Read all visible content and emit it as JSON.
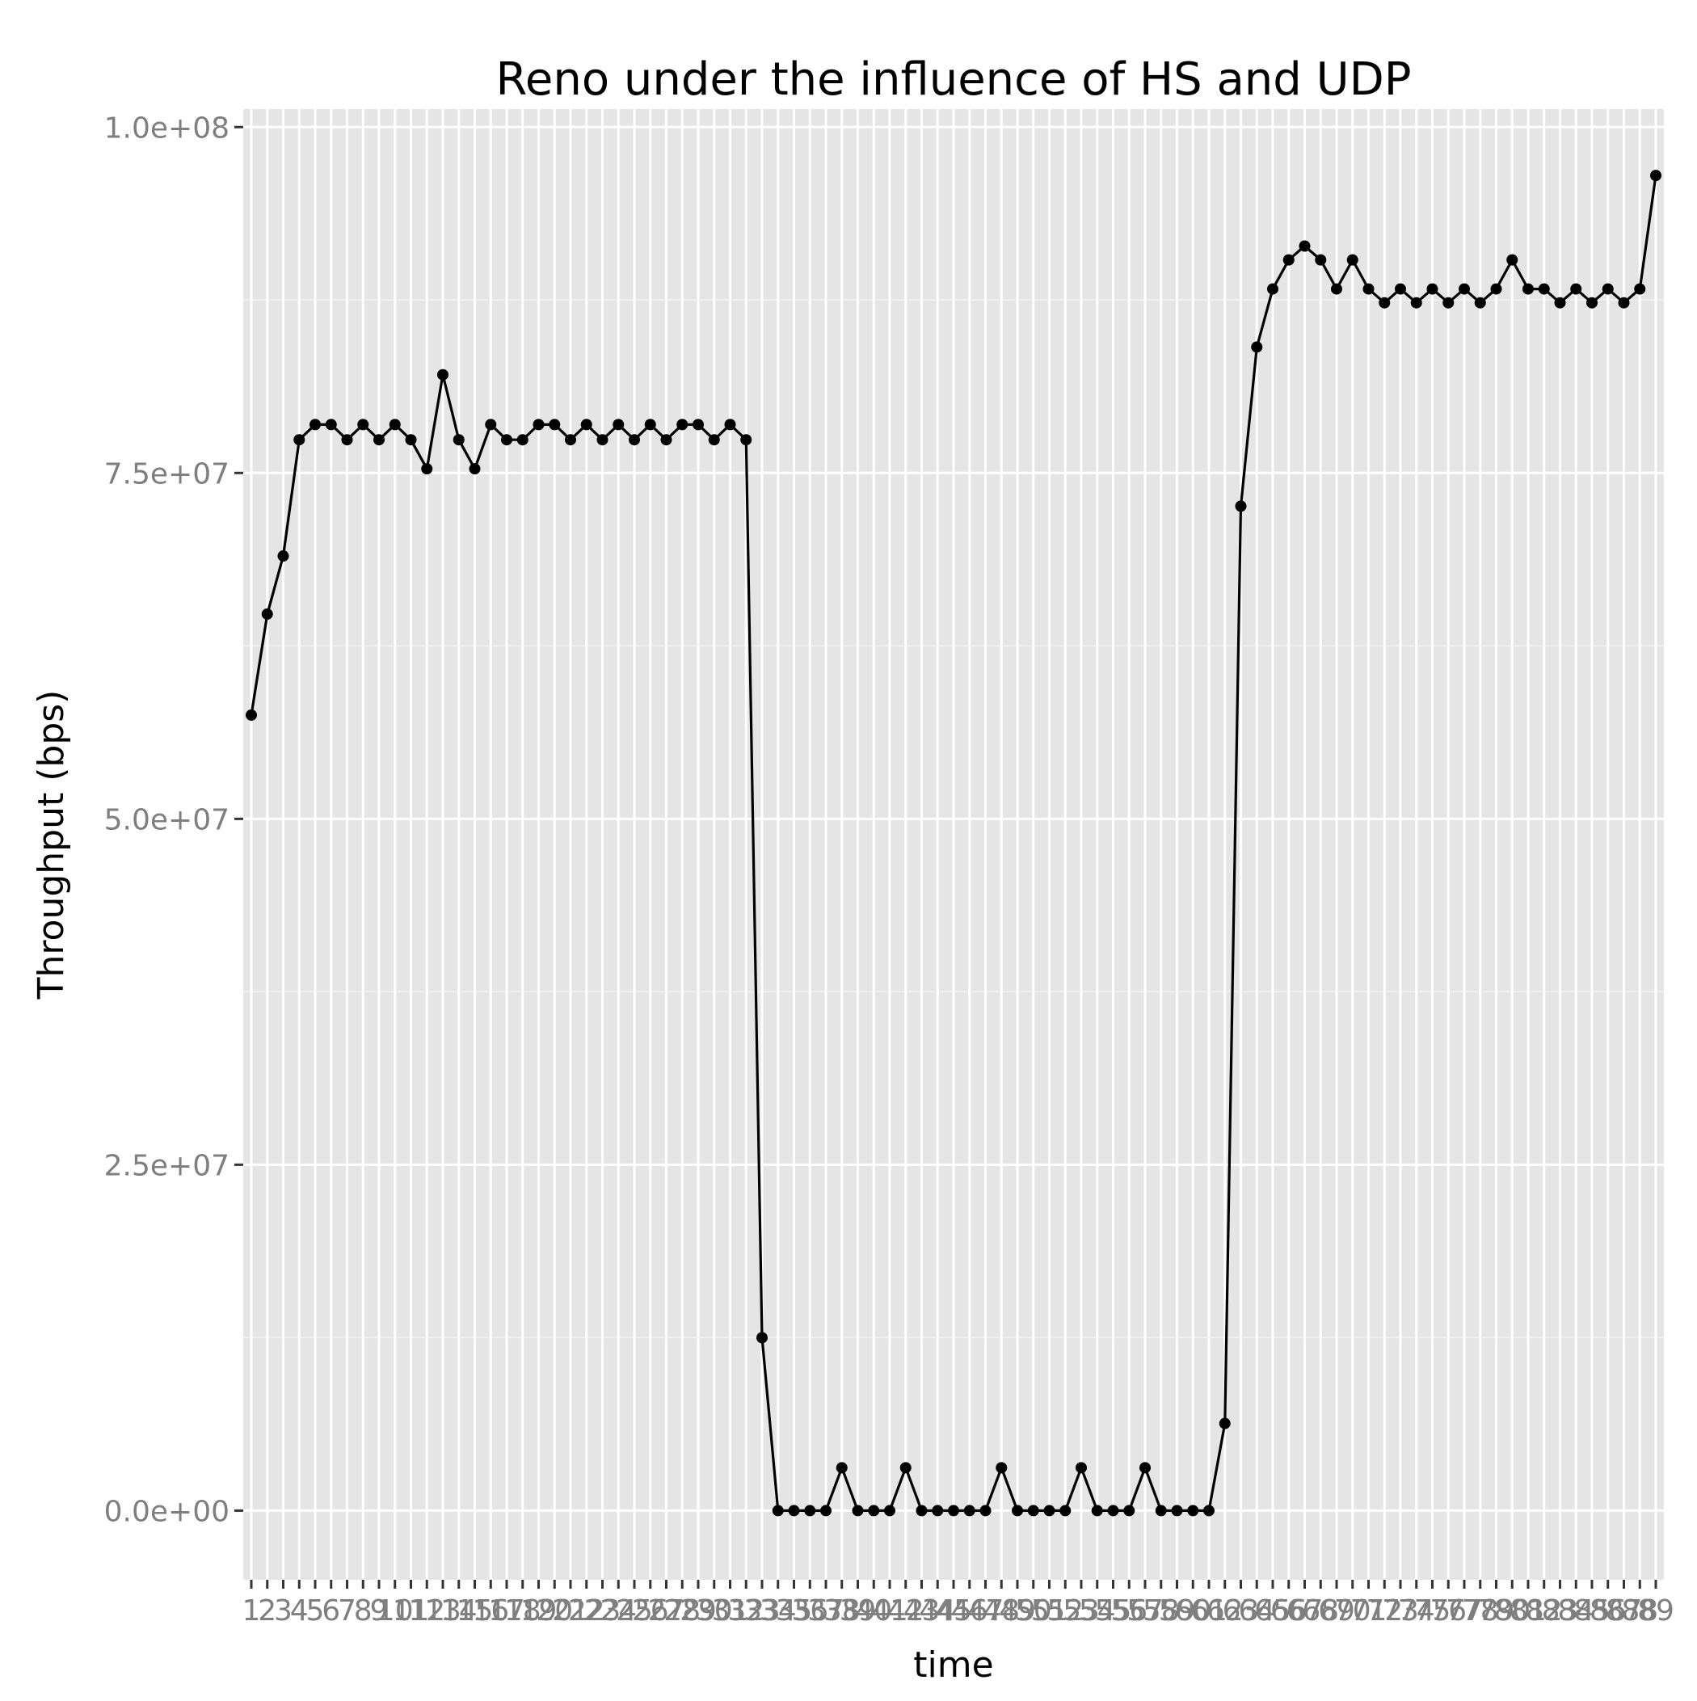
{
  "chart_data": {
    "type": "line",
    "title": "Reno under the influence of HS and UDP",
    "xlabel": "time",
    "ylabel": "Throughput (bps)",
    "categories": [
      "1",
      "2",
      "3",
      "4",
      "5",
      "6",
      "7",
      "8",
      "9",
      "10",
      "11",
      "12",
      "13",
      "14",
      "15",
      "16",
      "17",
      "18",
      "19",
      "20",
      "21",
      "22",
      "23",
      "24",
      "25",
      "26",
      "27",
      "28",
      "29",
      "30",
      "31",
      "32",
      "33",
      "34",
      "35",
      "36",
      "37",
      "38",
      "39",
      "40",
      "41",
      "42",
      "43",
      "44",
      "45",
      "46",
      "47",
      "48",
      "49",
      "50",
      "51",
      "52",
      "53",
      "54",
      "55",
      "56",
      "57",
      "58",
      "59",
      "60",
      "61",
      "62",
      "63",
      "64",
      "65",
      "66",
      "67",
      "68",
      "69",
      "70",
      "71",
      "72",
      "73",
      "74",
      "75",
      "76",
      "77",
      "78",
      "79",
      "80",
      "81",
      "82",
      "83",
      "84",
      "85",
      "86",
      "87",
      "88",
      "89"
    ],
    "values": [
      57500000,
      64800000,
      69000000,
      77400000,
      78500000,
      78500000,
      77400000,
      78500000,
      77400000,
      78500000,
      77400000,
      75300000,
      82100000,
      77400000,
      75300000,
      78500000,
      77400000,
      77400000,
      78500000,
      78500000,
      77400000,
      78500000,
      77400000,
      78500000,
      77400000,
      78500000,
      77400000,
      78500000,
      78500000,
      77400000,
      78500000,
      77400000,
      12500000,
      0,
      0,
      0,
      0,
      3100000,
      0,
      0,
      0,
      3100000,
      0,
      0,
      0,
      0,
      0,
      3100000,
      0,
      0,
      0,
      0,
      3100000,
      0,
      0,
      0,
      3100000,
      0,
      0,
      0,
      0,
      6300000,
      72600000,
      84100000,
      88300000,
      90400000,
      91400000,
      90400000,
      88300000,
      90400000,
      88300000,
      87300000,
      88300000,
      87300000,
      88300000,
      87300000,
      88300000,
      87300000,
      88300000,
      90400000,
      88300000,
      88300000,
      87300000,
      88300000,
      87300000,
      88300000,
      87300000,
      88300000,
      96500000
    ],
    "yticks": [
      0,
      25000000,
      50000000,
      75000000,
      100000000
    ],
    "ytick_labels": [
      "0.0e+00",
      "2.5e+07",
      "5.0e+07",
      "7.5e+07",
      "1.0e+08"
    ],
    "ylim": [
      -5000000,
      101300000
    ],
    "grid": true,
    "legend": "none",
    "colors": {
      "panel_background": "#e5e5e5",
      "grid_major": "#ffffff",
      "grid_minor": "#f2f2f2",
      "line": "#000000",
      "tick_label": "#7f7f7f"
    }
  }
}
